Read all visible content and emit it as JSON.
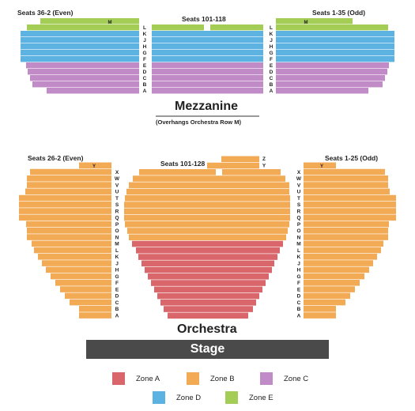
{
  "colors": {
    "zone_a": "#d9666a",
    "zone_b": "#f2aa55",
    "zone_c": "#c08bc6",
    "zone_d": "#5cb2e0",
    "zone_e": "#a3cd55",
    "stage": "#4a4a4a"
  },
  "mezzanine": {
    "title": "Mezzanine",
    "note": "(Overhangs Orchestra Row M)",
    "left_header": "Seats 36-2 (Even)",
    "center_header": "Seats 101-118",
    "right_header": "Seats 1-35 (Odd)",
    "rows": [
      "M",
      "L",
      "K",
      "J",
      "H",
      "G",
      "F",
      "E",
      "D",
      "C",
      "B",
      "A"
    ],
    "row_m_label": "M"
  },
  "orchestra": {
    "title": "Orchestra",
    "left_header": "Seats 26-2 (Even)",
    "center_header": "Seats 101-128",
    "right_header": "Seats 1-25 (Odd)",
    "rows": [
      "Z",
      "Y",
      "X",
      "W",
      "V",
      "U",
      "T",
      "S",
      "R",
      "Q",
      "P",
      "O",
      "N",
      "M",
      "L",
      "K",
      "J",
      "H",
      "G",
      "F",
      "E",
      "D",
      "C",
      "B",
      "A"
    ]
  },
  "stage": {
    "label": "Stage"
  },
  "legend": [
    {
      "label": "Zone A",
      "zone": "zone_a"
    },
    {
      "label": "Zone B",
      "zone": "zone_b"
    },
    {
      "label": "Zone C",
      "zone": "zone_c"
    },
    {
      "label": "Zone D",
      "zone": "zone_d"
    },
    {
      "label": "Zone E",
      "zone": "zone_e"
    }
  ]
}
